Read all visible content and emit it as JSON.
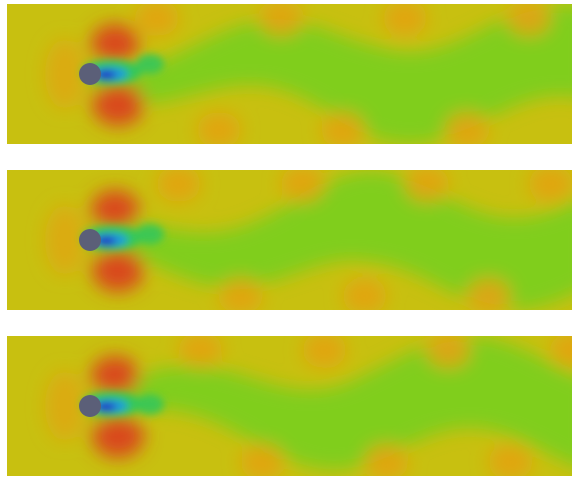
{
  "figure": {
    "panels": [
      {
        "id": "panel-1",
        "wake_phase": 0.0
      },
      {
        "id": "panel-2",
        "wake_phase": 0.35
      },
      {
        "id": "panel-3",
        "wake_phase": 0.7
      }
    ],
    "colormap": [
      "#2233c8",
      "#1f9bd9",
      "#35c75a",
      "#7ccf1a",
      "#c8c010",
      "#e3a312",
      "#e07a14",
      "#d9481a"
    ],
    "cylinder_color": "#5b5f78",
    "background_color": "#ffffff"
  }
}
